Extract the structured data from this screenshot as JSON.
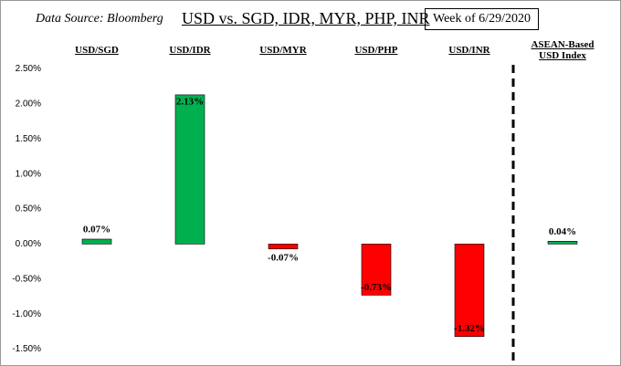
{
  "chart_data": {
    "type": "bar",
    "title": "USD vs. SGD, IDR, MYR, PHP, INR",
    "source": "Data Source: Bloomberg",
    "period": "Week of 6/29/2020",
    "categories": [
      "USD/SGD",
      "USD/IDR",
      "USD/MYR",
      "USD/PHP",
      "USD/INR",
      "ASEAN-Based USD Index"
    ],
    "values": [
      0.07,
      2.13,
      -0.07,
      -0.73,
      -1.32,
      0.04
    ],
    "value_labels": [
      "0.07%",
      "2.13%",
      "-0.07%",
      "-0.73%",
      "-1.32%",
      "0.04%"
    ],
    "colors": [
      "#00b050",
      "#00b050",
      "#ff0000",
      "#ff0000",
      "#ff0000",
      "#00b050"
    ],
    "ylim": [
      -1.65,
      2.65
    ],
    "yticks": [
      {
        "value": 2.5,
        "label": "2.50%"
      },
      {
        "value": 2,
        "label": "2.00%"
      },
      {
        "value": 1.5,
        "label": "1.50%"
      },
      {
        "value": 1,
        "label": "1.00%"
      },
      {
        "value": 0.5,
        "label": "0.50%"
      },
      {
        "value": 0,
        "label": "0.00%"
      },
      {
        "value": -0.5,
        "label": "-0.50%"
      },
      {
        "value": -1,
        "label": "-1.00%"
      },
      {
        "value": -1.5,
        "label": "-1.50%"
      }
    ],
    "grid": false
  }
}
